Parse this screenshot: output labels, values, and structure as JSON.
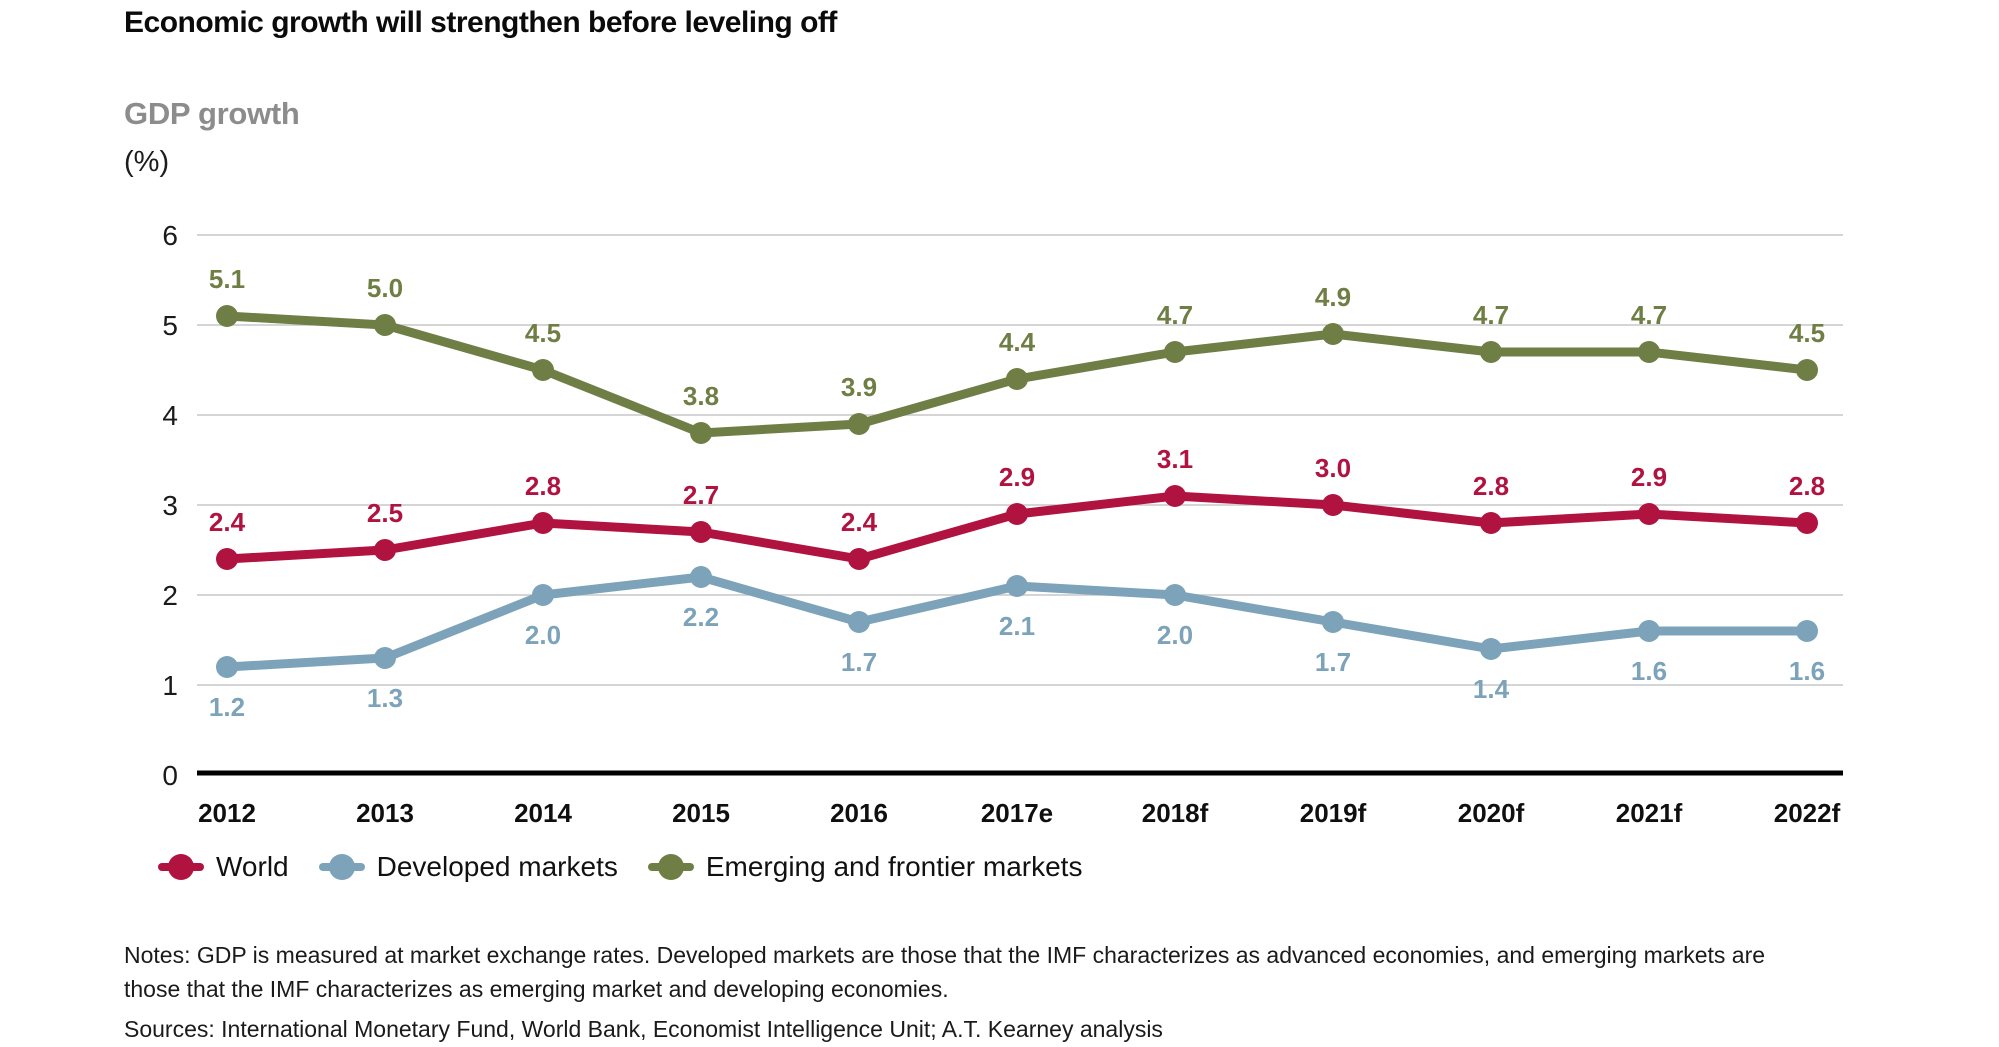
{
  "header": {
    "title": "Economic growth will strengthen before leveling off",
    "subtitle": "GDP growth",
    "unit": "(%)"
  },
  "chart_data": {
    "type": "line",
    "title": "GDP growth (%)",
    "categories": [
      "2012",
      "2013",
      "2014",
      "2015",
      "2016",
      "2017e",
      "2018f",
      "2019f",
      "2020f",
      "2021f",
      "2022f"
    ],
    "ylim": [
      0,
      6
    ],
    "yticks": [
      0,
      1,
      2,
      3,
      4,
      5,
      6
    ],
    "grid": "horizontal",
    "legend_position": "bottom",
    "colors": {
      "grid": "#c7c7c7",
      "axis": "#000000",
      "tick_text": "#1a1a1a"
    },
    "series": [
      {
        "name": "World",
        "color": "#B11341",
        "label_position": "above",
        "values": [
          2.4,
          2.5,
          2.8,
          2.7,
          2.4,
          2.9,
          3.1,
          3.0,
          2.8,
          2.9,
          2.8
        ]
      },
      {
        "name": "Developed markets",
        "color": "#7CA3B9",
        "label_position": "below",
        "values": [
          1.2,
          1.3,
          2.0,
          2.2,
          1.7,
          2.1,
          2.0,
          1.7,
          1.4,
          1.6,
          1.6
        ]
      },
      {
        "name": "Emerging and frontier markets",
        "color": "#6E7E44",
        "label_position": "above",
        "values": [
          5.1,
          5.0,
          4.5,
          3.8,
          3.9,
          4.4,
          4.7,
          4.9,
          4.7,
          4.7,
          4.5
        ]
      }
    ]
  },
  "notes": "Notes: GDP is measured at market exchange rates. Developed markets are those that the IMF characterizes as advanced economies, and emerging markets are those that the IMF characterizes as emerging market and developing economies.",
  "sources": "Sources: International Monetary Fund, World Bank, Economist Intelligence Unit; A.T. Kearney analysis"
}
